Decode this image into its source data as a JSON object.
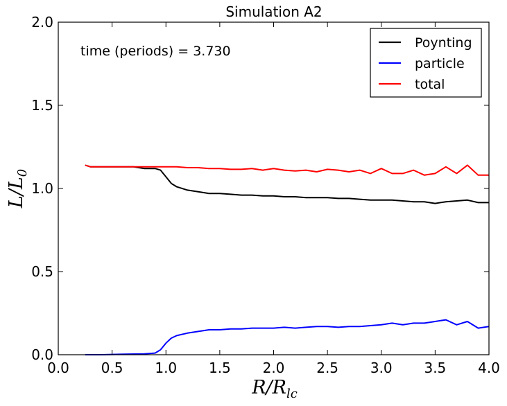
{
  "chart_data": {
    "type": "line",
    "title": "Simulation A2",
    "annotation": "time (periods) = 3.730",
    "xlabel": {
      "main": "R/R",
      "sub": "lc"
    },
    "ylabel": {
      "main": "L/L",
      "sub": "0"
    },
    "xlim": [
      0.0,
      4.0
    ],
    "ylim": [
      0.0,
      2.0
    ],
    "xticks": [
      0.0,
      0.5,
      1.0,
      1.5,
      2.0,
      2.5,
      3.0,
      3.5,
      4.0
    ],
    "xtick_labels": [
      "0.0",
      "0.5",
      "1.0",
      "1.5",
      "2.0",
      "2.5",
      "3.0",
      "3.5",
      "4.0"
    ],
    "yticks": [
      0.0,
      0.5,
      1.0,
      1.5,
      2.0
    ],
    "ytick_labels": [
      "0.0",
      "0.5",
      "1.0",
      "1.5",
      "2.0"
    ],
    "legend_position": "top-right",
    "series": [
      {
        "name": "Poynting",
        "color": "#000000",
        "x": [
          0.25,
          0.3,
          0.35,
          0.4,
          0.5,
          0.6,
          0.7,
          0.8,
          0.9,
          0.95,
          1.0,
          1.05,
          1.1,
          1.2,
          1.3,
          1.4,
          1.5,
          1.6,
          1.7,
          1.8,
          1.9,
          2.0,
          2.1,
          2.2,
          2.3,
          2.4,
          2.5,
          2.6,
          2.7,
          2.8,
          2.9,
          3.0,
          3.1,
          3.2,
          3.3,
          3.4,
          3.5,
          3.6,
          3.7,
          3.8,
          3.9,
          4.0
        ],
        "y": [
          1.14,
          1.13,
          1.13,
          1.13,
          1.13,
          1.13,
          1.13,
          1.12,
          1.12,
          1.11,
          1.07,
          1.03,
          1.01,
          0.99,
          0.98,
          0.97,
          0.97,
          0.965,
          0.96,
          0.96,
          0.955,
          0.955,
          0.95,
          0.95,
          0.945,
          0.945,
          0.945,
          0.94,
          0.94,
          0.935,
          0.93,
          0.93,
          0.93,
          0.925,
          0.92,
          0.92,
          0.91,
          0.92,
          0.925,
          0.93,
          0.915,
          0.915
        ]
      },
      {
        "name": "particle",
        "color": "#0000ff",
        "x": [
          0.25,
          0.4,
          0.6,
          0.8,
          0.9,
          0.95,
          1.0,
          1.05,
          1.1,
          1.2,
          1.3,
          1.4,
          1.5,
          1.6,
          1.7,
          1.8,
          1.9,
          2.0,
          2.1,
          2.2,
          2.3,
          2.4,
          2.5,
          2.6,
          2.7,
          2.8,
          2.9,
          3.0,
          3.1,
          3.2,
          3.3,
          3.4,
          3.5,
          3.6,
          3.7,
          3.8,
          3.9,
          4.0
        ],
        "y": [
          0.0,
          0.0,
          0.003,
          0.005,
          0.01,
          0.03,
          0.07,
          0.1,
          0.115,
          0.13,
          0.14,
          0.15,
          0.15,
          0.155,
          0.155,
          0.16,
          0.16,
          0.16,
          0.165,
          0.16,
          0.165,
          0.17,
          0.17,
          0.165,
          0.17,
          0.17,
          0.175,
          0.18,
          0.19,
          0.18,
          0.19,
          0.19,
          0.2,
          0.21,
          0.18,
          0.2,
          0.16,
          0.17
        ]
      },
      {
        "name": "total",
        "color": "#ff0000",
        "x": [
          0.25,
          0.3,
          0.35,
          0.4,
          0.5,
          0.6,
          0.7,
          0.8,
          0.9,
          1.0,
          1.1,
          1.2,
          1.3,
          1.4,
          1.5,
          1.6,
          1.7,
          1.8,
          1.9,
          2.0,
          2.1,
          2.2,
          2.3,
          2.4,
          2.5,
          2.6,
          2.7,
          2.8,
          2.9,
          3.0,
          3.1,
          3.2,
          3.3,
          3.4,
          3.5,
          3.6,
          3.7,
          3.8,
          3.9,
          4.0
        ],
        "y": [
          1.14,
          1.13,
          1.13,
          1.13,
          1.13,
          1.13,
          1.13,
          1.13,
          1.13,
          1.13,
          1.13,
          1.125,
          1.125,
          1.12,
          1.12,
          1.115,
          1.115,
          1.12,
          1.11,
          1.12,
          1.11,
          1.105,
          1.11,
          1.1,
          1.115,
          1.11,
          1.1,
          1.11,
          1.09,
          1.12,
          1.09,
          1.09,
          1.11,
          1.08,
          1.09,
          1.13,
          1.09,
          1.14,
          1.08,
          1.08
        ]
      }
    ]
  }
}
